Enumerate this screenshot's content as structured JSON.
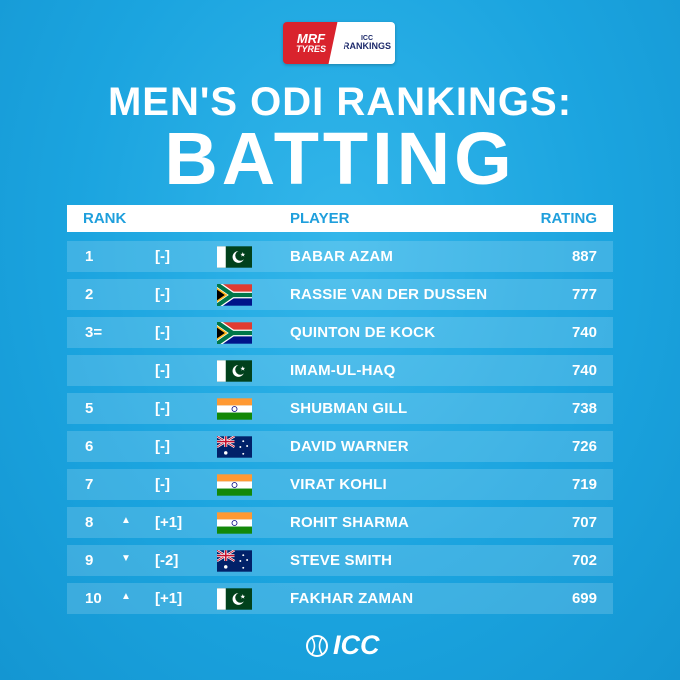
{
  "sponsor": {
    "mrf_line1": "MRF",
    "mrf_line2": "TYRES",
    "icc_line1": "ICC",
    "icc_line2": "RANKINGS"
  },
  "title": "MEN'S ODI RANKINGS:",
  "subtitle": "BATTING",
  "header": {
    "rank": "RANK",
    "player": "PLAYER",
    "rating": "RATING"
  },
  "rows": [
    {
      "rank": "1",
      "arrow": "",
      "change": "[-]",
      "flag": "pakistan",
      "player": "BABAR AZAM",
      "rating": "887"
    },
    {
      "rank": "2",
      "arrow": "",
      "change": "[-]",
      "flag": "south-africa",
      "player": "RASSIE VAN DER DUSSEN",
      "rating": "777"
    },
    {
      "rank": "3=",
      "arrow": "",
      "change": "[-]",
      "flag": "south-africa",
      "player": "QUINTON DE KOCK",
      "rating": "740"
    },
    {
      "rank": "",
      "arrow": "",
      "change": "[-]",
      "flag": "pakistan",
      "player": "IMAM-UL-HAQ",
      "rating": "740"
    },
    {
      "rank": "5",
      "arrow": "",
      "change": "[-]",
      "flag": "india",
      "player": "SHUBMAN GILL",
      "rating": "738"
    },
    {
      "rank": "6",
      "arrow": "",
      "change": "[-]",
      "flag": "australia",
      "player": "DAVID WARNER",
      "rating": "726"
    },
    {
      "rank": "7",
      "arrow": "",
      "change": "[-]",
      "flag": "india",
      "player": "VIRAT KOHLI",
      "rating": "719"
    },
    {
      "rank": "8",
      "arrow": "▲",
      "change": "[+1]",
      "flag": "india",
      "player": "ROHIT SHARMA",
      "rating": "707"
    },
    {
      "rank": "9",
      "arrow": "▼",
      "change": "[-2]",
      "flag": "australia",
      "player": "STEVE SMITH",
      "rating": "702"
    },
    {
      "rank": "10",
      "arrow": "▲",
      "change": "[+1]",
      "flag": "pakistan",
      "player": "FAKHAR ZAMAN",
      "rating": "699"
    }
  ],
  "footer": {
    "logo_text": "ICC"
  },
  "colors": {
    "background": "#1ba4df",
    "header_text": "#1f9fdc",
    "row_tint": "rgba(255,255,255,0.16)"
  }
}
